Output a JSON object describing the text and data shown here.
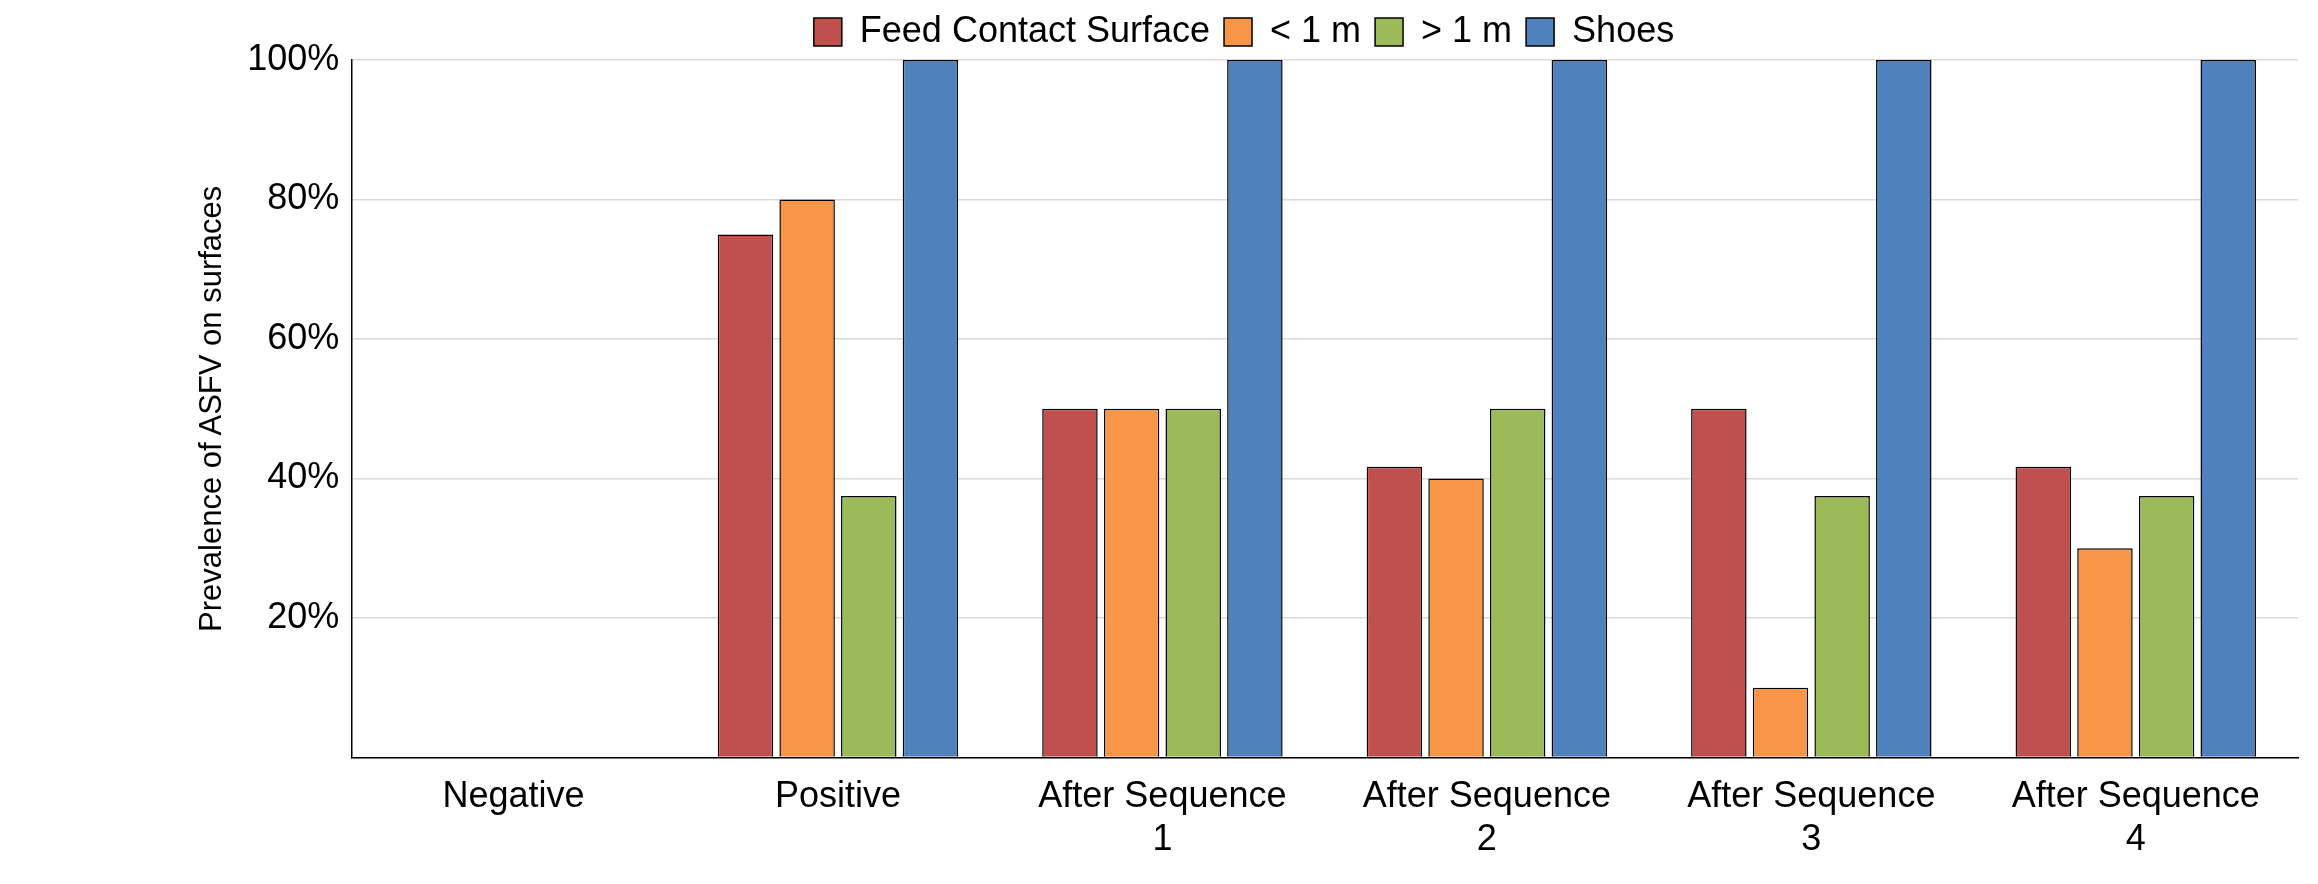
{
  "chart_data": {
    "type": "bar",
    "ylabel": "Prevalence of ASFV on surfaces",
    "categories": [
      "Negative",
      "Positive",
      "After Sequence 1",
      "After Sequence 2",
      "After Sequence 3",
      "After Sequence 4"
    ],
    "series": [
      {
        "name": "Feed Contact Surface",
        "color": "#c0504d",
        "values": [
          0,
          75,
          50,
          41.7,
          50,
          41.7
        ]
      },
      {
        "name": "< 1 m",
        "color": "#f79646",
        "values": [
          0,
          80,
          50,
          40,
          10,
          30
        ]
      },
      {
        "name": "> 1 m",
        "color": "#9bbb59",
        "values": [
          0,
          37.5,
          50,
          50,
          37.5,
          37.5
        ]
      },
      {
        "name": "Shoes",
        "color": "#4f81bd",
        "values": [
          0,
          100,
          100,
          100,
          100,
          100
        ]
      }
    ],
    "ylim": [
      0,
      100
    ],
    "yticks": [
      {
        "value": 0,
        "label": null
      },
      {
        "value": 20,
        "label": "20%"
      },
      {
        "value": 40,
        "label": "40%"
      },
      {
        "value": 60,
        "label": "60%"
      },
      {
        "value": 80,
        "label": "80%"
      },
      {
        "value": 100,
        "label": "100%"
      }
    ],
    "grid": "y",
    "legend": "top"
  }
}
